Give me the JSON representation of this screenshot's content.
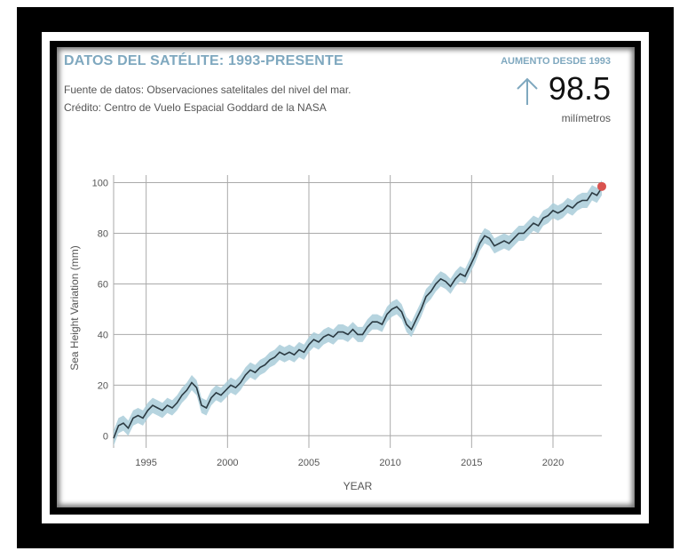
{
  "header": {
    "title": "DATOS DEL SATÉLITE: 1993-PRESENTE",
    "source": "Fuente de datos: Observaciones satelitales del nivel del mar.",
    "credit": "Crédito: Centro de Vuelo Espacial Goddard de la NASA"
  },
  "increase": {
    "label": "AUMENTO DESDE 1993",
    "value": "98.5",
    "unit": "milímetros",
    "arrow_icon": "arrow-up-icon",
    "arrow_color": "#7fa8bf"
  },
  "colors": {
    "line": "#2b3a42",
    "band": "#a9ccd9",
    "marker": "#d9534f",
    "grid": "#aaaaaa"
  },
  "chart_data": {
    "type": "line",
    "title": "",
    "xlabel": "YEAR",
    "ylabel": "Sea Height Variation (mm)",
    "xlim": [
      1993,
      2023
    ],
    "ylim": [
      -2,
      103
    ],
    "x_ticks": [
      1995,
      2000,
      2005,
      2010,
      2015,
      2020
    ],
    "y_ticks": [
      0,
      20,
      40,
      60,
      80,
      100
    ],
    "grid": true,
    "band_halfwidth": 3,
    "series": [
      {
        "x": [
          1993.0,
          1993.3,
          1993.6,
          1993.9,
          1994.2,
          1994.5,
          1994.8,
          1995.1,
          1995.4,
          1995.7,
          1996.0,
          1996.3,
          1996.6,
          1996.9,
          1997.2,
          1997.5,
          1997.8,
          1998.1,
          1998.4,
          1998.7,
          1999.0,
          1999.3,
          1999.6,
          1999.9,
          2000.2,
          2000.5,
          2000.8,
          2001.1,
          2001.4,
          2001.7,
          2002.0,
          2002.3,
          2002.6,
          2002.9,
          2003.2,
          2003.5,
          2003.8,
          2004.1,
          2004.4,
          2004.7,
          2005.0,
          2005.3,
          2005.6,
          2005.9,
          2006.2,
          2006.5,
          2006.8,
          2007.1,
          2007.4,
          2007.7,
          2008.0,
          2008.3,
          2008.6,
          2008.9,
          2009.2,
          2009.5,
          2009.8,
          2010.1,
          2010.4,
          2010.7,
          2011.0,
          2011.3,
          2011.6,
          2011.9,
          2012.2,
          2012.5,
          2012.8,
          2013.1,
          2013.4,
          2013.7,
          2014.0,
          2014.3,
          2014.6,
          2014.9,
          2015.2,
          2015.5,
          2015.8,
          2016.1,
          2016.4,
          2016.7,
          2017.0,
          2017.3,
          2017.6,
          2017.9,
          2018.2,
          2018.5,
          2018.8,
          2019.1,
          2019.4,
          2019.7,
          2020.0,
          2020.3,
          2020.6,
          2020.9,
          2021.2,
          2021.5,
          2021.8,
          2022.1,
          2022.4,
          2022.7,
          2023.0
        ],
        "y": [
          -1,
          4,
          5,
          3,
          7,
          8,
          7,
          10,
          12,
          11,
          10,
          12,
          11,
          13,
          16,
          18,
          21,
          19,
          12,
          11,
          15,
          17,
          16,
          18,
          20,
          19,
          21,
          24,
          26,
          25,
          27,
          28,
          30,
          31,
          33,
          32,
          33,
          32,
          34,
          33,
          36,
          38,
          37,
          39,
          40,
          39,
          41,
          41,
          40,
          42,
          40,
          40,
          43,
          45,
          45,
          44,
          48,
          50,
          51,
          49,
          44,
          42,
          46,
          50,
          55,
          57,
          60,
          62,
          61,
          59,
          62,
          64,
          63,
          67,
          71,
          76,
          79,
          78,
          75,
          76,
          77,
          76,
          78,
          80,
          80,
          82,
          84,
          83,
          86,
          87,
          89,
          88,
          89,
          91,
          90,
          92,
          93,
          93,
          96,
          95,
          98
        ]
      }
    ],
    "last_point": {
      "x": 2023.0,
      "y": 98.5
    }
  }
}
